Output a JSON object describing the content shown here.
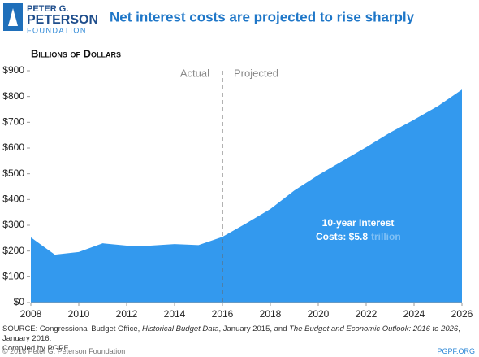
{
  "logo": {
    "lines": [
      "PETER G.",
      "PETERSON",
      "FOUNDATION"
    ]
  },
  "chart_data": {
    "type": "area",
    "title": "Net interest costs are projected to rise sharply",
    "subtitle": "Billions of Dollars",
    "x": [
      2008,
      2009,
      2010,
      2011,
      2012,
      2013,
      2014,
      2015,
      2016,
      2017,
      2018,
      2019,
      2020,
      2021,
      2022,
      2023,
      2024,
      2025,
      2026
    ],
    "values": [
      253,
      186,
      196,
      230,
      221,
      221,
      227,
      223,
      255,
      308,
      363,
      435,
      495,
      549,
      603,
      660,
      710,
      763,
      827
    ],
    "color": "#3399ee",
    "xlim": [
      2008,
      2026
    ],
    "xticks": [
      2008,
      2010,
      2012,
      2014,
      2016,
      2018,
      2020,
      2022,
      2024,
      2026
    ],
    "ylim": [
      0,
      900
    ],
    "yticks": [
      {
        "value": 0,
        "label": "$0"
      },
      {
        "value": 100,
        "label": "$100"
      },
      {
        "value": 200,
        "label": "$200"
      },
      {
        "value": 300,
        "label": "$300"
      },
      {
        "value": 400,
        "label": "$400"
      },
      {
        "value": 500,
        "label": "$500"
      },
      {
        "value": 600,
        "label": "$600"
      },
      {
        "value": 700,
        "label": "$700"
      },
      {
        "value": 800,
        "label": "$800"
      },
      {
        "value": 900,
        "label": "$900"
      }
    ],
    "grid": false,
    "divider_x": 2016,
    "annotations": {
      "actual": "Actual",
      "projected": "Projected",
      "total": [
        "10-year Interest",
        "Costs: $5.8",
        "trillion"
      ]
    }
  },
  "source": {
    "parts": [
      {
        "text": "SOURCE: Congressional Budget Office, ",
        "italic": false
      },
      {
        "text": "Historical Budget Data",
        "italic": true
      },
      {
        "text": ", January 2015, and ",
        "italic": false
      },
      {
        "text": "The Budget and Economic Outlook: 2016 to 2026",
        "italic": true
      },
      {
        "text": ", January 2016.",
        "italic": false
      }
    ],
    "compiled": "Compiled by PGPF."
  },
  "footer": {
    "copyright": "© 2016 Peter G. Peterson Foundation",
    "site": "PGPF.ORG"
  }
}
